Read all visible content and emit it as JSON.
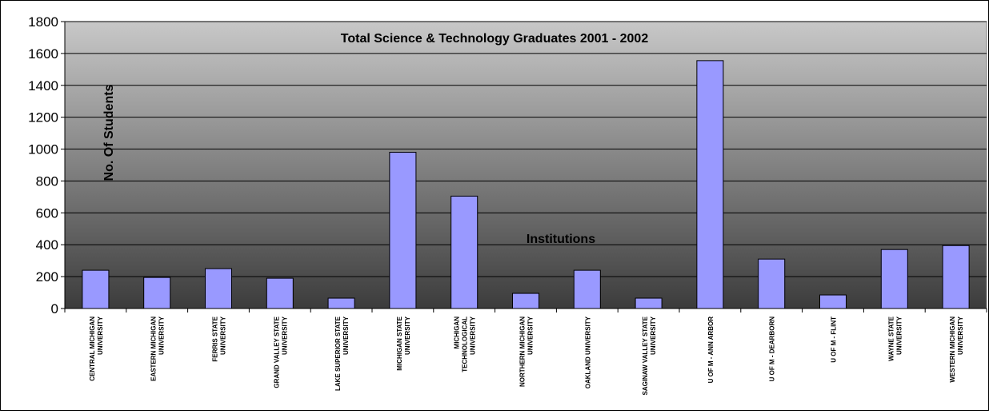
{
  "chart_data": {
    "type": "bar",
    "title": "Total Science & Technology Graduates 2001 - 2002",
    "xlabel": "Institutions",
    "ylabel": "No. Of Students",
    "ylim": [
      0,
      1800
    ],
    "yticks": [
      "0",
      "200",
      "400",
      "600",
      "800",
      "1000",
      "1200",
      "1400",
      "1600",
      "1800"
    ],
    "grid": true,
    "legend": "none",
    "categories": [
      [
        "CENTRAL MICHIGAN",
        "UNIVERSITY"
      ],
      [
        "EASTERN MICHIGAN",
        "UNIVERSITY"
      ],
      [
        "FERRIS STATE",
        "UNIVERSITY"
      ],
      [
        "GRAND VALLEY STATE",
        "UNIVERSITY"
      ],
      [
        "LAKE SUPERIOR STATE",
        "UNIVERSITY"
      ],
      [
        "MICHIGAN STATE",
        "UNIVERSITY"
      ],
      [
        "MICHIGAN",
        "TECHNOLOGICAL",
        "UNIVERSITY"
      ],
      [
        "NORTHERN MICHIGAN",
        "UNIVERSITY"
      ],
      [
        "OAKLAND UNIVERSITY"
      ],
      [
        "SAGINAW VALLEY STATE",
        "UNIVERSITY"
      ],
      [
        "U OF M - ANN ARBOR"
      ],
      [
        "U OF M - DEARBORN"
      ],
      [
        "U OF M - FLINT"
      ],
      [
        "WAYNE STATE",
        "UNIVERSITY"
      ],
      [
        "WESTERN MICHIGAN",
        "UNIVERSITY"
      ]
    ],
    "values": [
      240,
      195,
      250,
      190,
      65,
      980,
      705,
      95,
      240,
      65,
      1555,
      310,
      85,
      370,
      395
    ],
    "colors": {
      "bar_fill": "#9999ff",
      "bar_stroke": "#000000",
      "plot_top": "#c8c8c8",
      "plot_bottom": "#3c3c3c",
      "grid": "#000000"
    }
  }
}
